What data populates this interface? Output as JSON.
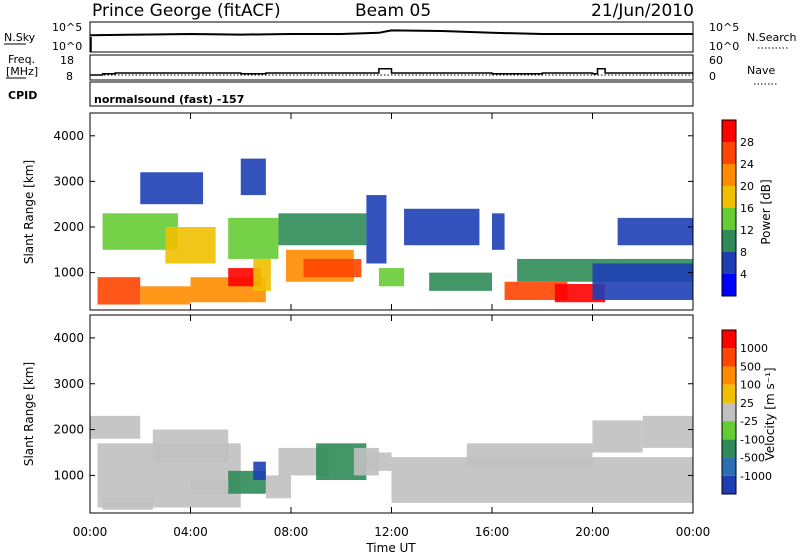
{
  "header": {
    "station": "Prince George (fitACF)",
    "beam": "Beam 05",
    "date": "21/Jun/2010"
  },
  "nsky_panel": {
    "left_label": "N.Sky",
    "left_ticks": [
      "10^5",
      "10^0"
    ],
    "right_label": "N.Search",
    "right_ticks": [
      "10^5",
      "10^0"
    ]
  },
  "freq_panel": {
    "left_label_line1": "Freq.",
    "left_label_line2": "[MHz]",
    "left_ticks": [
      "18",
      "8"
    ],
    "right_label": "Nave",
    "right_ticks": [
      "60",
      "0"
    ]
  },
  "cpid": {
    "label": "CPID",
    "program": "normalsound (fast) -157"
  },
  "power_panel": {
    "ylabel": "Slant Range [km]",
    "yticks": [
      "4000",
      "3000",
      "2000",
      "1000"
    ],
    "colorbar_label": "Power [dB]",
    "colorbar_ticks": [
      "28",
      "24",
      "20",
      "16",
      "12",
      "8",
      "4"
    ],
    "colors": [
      "#0000ff",
      "#1e3fb4",
      "#2e8b57",
      "#66cc33",
      "#f0c000",
      "#ff8c00",
      "#ff4500",
      "#ff0000"
    ]
  },
  "velocity_panel": {
    "ylabel": "Slant Range [km]",
    "yticks": [
      "4000",
      "3000",
      "2000",
      "1000"
    ],
    "colorbar_label": "Velocity [m s⁻¹]",
    "colorbar_ticks": [
      "1000",
      "500",
      "100",
      "25",
      "-25",
      "-100",
      "-500",
      "-1000"
    ],
    "colors": [
      "#1e3fb4",
      "#2d6fb0",
      "#2e8b57",
      "#66cc33",
      "#c0c0c0",
      "#f0c000",
      "#ff8c00",
      "#ff4500",
      "#ff0000"
    ]
  },
  "xaxis": {
    "label": "Time UT",
    "ticks": [
      "00:00",
      "04:00",
      "08:00",
      "12:00",
      "16:00",
      "20:00",
      "00:00"
    ]
  },
  "chart_data": [
    {
      "type": "line",
      "title": "N.Sky / N.Search",
      "x": [
        0,
        2,
        4,
        6,
        8,
        10,
        11.5,
        12,
        14,
        16,
        18,
        20,
        22,
        24
      ],
      "series": [
        {
          "name": "N.Sky",
          "values": [
            2.8,
            2.9,
            3.0,
            2.9,
            3.0,
            3.0,
            3.2,
            3.6,
            3.5,
            3.2,
            3.0,
            3.0,
            3.0,
            3.0
          ]
        }
      ],
      "ylim": [
        0,
        5
      ],
      "log_scale": true
    },
    {
      "type": "line",
      "title": "Freq. / Nave",
      "x": [
        0,
        0.5,
        1.0,
        4.0,
        6.0,
        7.0,
        9.5,
        11.3,
        11.5,
        11.8,
        12.0,
        16.0,
        18.0,
        20.0,
        20.2,
        20.5,
        22.0,
        24.0
      ],
      "series": [
        {
          "name": "Freq.",
          "values": [
            10.0,
            10.5,
            10.8,
            10.8,
            10.5,
            10.8,
            10.8,
            10.8,
            12.5,
            12.5,
            10.8,
            10.5,
            10.8,
            10.5,
            12.5,
            10.8,
            10.8,
            10.8
          ]
        },
        {
          "name": "Nave",
          "values": [
            12,
            12,
            12,
            12,
            12,
            12,
            12,
            12,
            12,
            12,
            12,
            12,
            12,
            12,
            12,
            12,
            12,
            12
          ]
        }
      ],
      "ylim": [
        8,
        18
      ]
    },
    {
      "type": "heatmap",
      "title": "Power [dB]",
      "xlabel": "Time UT",
      "ylabel": "Slant Range [km]",
      "xlim": [
        0,
        24
      ],
      "ylim": [
        180,
        4500
      ],
      "zlim": [
        0,
        30
      ],
      "cells": [
        [
          0.3,
          2.0,
          300,
          900,
          24
        ],
        [
          2.0,
          4.0,
          300,
          700,
          22
        ],
        [
          4.0,
          7.0,
          350,
          900,
          20
        ],
        [
          5.5,
          6.8,
          700,
          1100,
          27
        ],
        [
          6.5,
          7.2,
          600,
          1300,
          18
        ],
        [
          7.8,
          10.5,
          800,
          1500,
          20
        ],
        [
          8.5,
          10.8,
          900,
          1300,
          26
        ],
        [
          0.5,
          3.5,
          1500,
          2300,
          12
        ],
        [
          3.0,
          5.0,
          1200,
          2000,
          16
        ],
        [
          5.5,
          7.5,
          1300,
          2200,
          14
        ],
        [
          7.5,
          11.0,
          1600,
          2300,
          10
        ],
        [
          11.5,
          12.5,
          700,
          1100,
          12
        ],
        [
          13.5,
          16.0,
          600,
          1000,
          8
        ],
        [
          16.5,
          19.0,
          400,
          800,
          26
        ],
        [
          18.5,
          20.5,
          350,
          750,
          28
        ],
        [
          17.0,
          24.0,
          800,
          1300,
          8
        ],
        [
          20.0,
          24.0,
          400,
          1200,
          6
        ],
        [
          21.0,
          24.0,
          1600,
          2200,
          6
        ],
        [
          12.5,
          15.5,
          1600,
          2400,
          6
        ],
        [
          2.0,
          4.5,
          2500,
          3200,
          6
        ],
        [
          6.0,
          7.0,
          2700,
          3500,
          6
        ],
        [
          16.0,
          16.5,
          1500,
          2300,
          4
        ],
        [
          11.0,
          11.8,
          1200,
          2700,
          5
        ]
      ]
    },
    {
      "type": "heatmap",
      "title": "Velocity [m s⁻¹]",
      "xlabel": "Time UT",
      "ylabel": "Slant Range [km]",
      "xlim": [
        0,
        24
      ],
      "ylim": [
        180,
        4500
      ],
      "zlim": [
        -1000,
        1000
      ],
      "cells": [
        [
          0.3,
          6.0,
          300,
          1700,
          0
        ],
        [
          0.0,
          2.0,
          1800,
          2300,
          0
        ],
        [
          2.5,
          5.5,
          1300,
          2000,
          0
        ],
        [
          5.5,
          7.0,
          600,
          1100,
          -500
        ],
        [
          6.5,
          7.0,
          900,
          1300,
          -1000
        ],
        [
          4.0,
          5.5,
          600,
          900,
          -100
        ],
        [
          7.5,
          9.5,
          1000,
          1600,
          -100
        ],
        [
          9.0,
          11.0,
          900,
          1700,
          -500
        ],
        [
          10.5,
          11.5,
          1000,
          1600,
          100
        ],
        [
          11.0,
          12.0,
          1100,
          1500,
          -100
        ],
        [
          12.0,
          24.0,
          400,
          1400,
          0
        ],
        [
          15.0,
          20.0,
          1200,
          1700,
          0
        ],
        [
          20.0,
          22.0,
          1500,
          2200,
          0
        ],
        [
          22.0,
          24.0,
          1600,
          2300,
          0
        ],
        [
          7.0,
          8.0,
          500,
          1000,
          0
        ],
        [
          0.5,
          2.5,
          250,
          500,
          0
        ]
      ]
    }
  ]
}
